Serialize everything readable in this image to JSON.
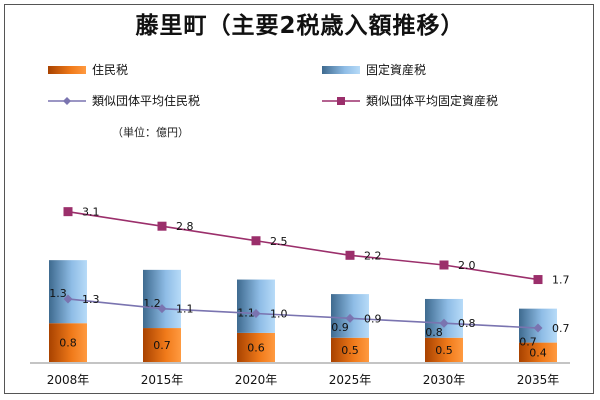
{
  "chart_data": {
    "type": "bar",
    "title": "藤里町（主要2税歳入額推移）",
    "unit_label": "（単位：億円）",
    "categories": [
      "2008年",
      "2015年",
      "2020年",
      "2025年",
      "2030年",
      "2035年"
    ],
    "stacked": true,
    "bar_series": [
      {
        "name": "住民税",
        "values": [
          0.8,
          0.7,
          0.6,
          0.5,
          0.5,
          0.4
        ],
        "color_top": "#ff8a2a",
        "color_bottom": "#b34700"
      },
      {
        "name": "固定資産税",
        "values": [
          1.3,
          1.2,
          1.1,
          0.9,
          0.8,
          0.7
        ],
        "color_top": "#a9d0f5",
        "color_bottom": "#3e6a8f"
      }
    ],
    "line_series": [
      {
        "name": "類似団体平均住民税",
        "values": [
          1.3,
          1.1,
          1.0,
          0.9,
          0.8,
          0.7
        ],
        "color": "#7a74b0",
        "marker": "diamond"
      },
      {
        "name": "類似団体平均固定資産税",
        "values": [
          3.1,
          2.8,
          2.5,
          2.2,
          2.0,
          1.7
        ],
        "color": "#9b2f6b",
        "marker": "square"
      }
    ],
    "legend_position": "top",
    "grid": false
  }
}
